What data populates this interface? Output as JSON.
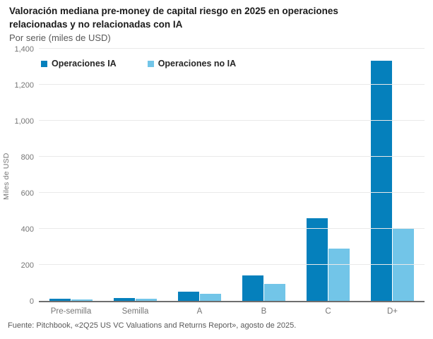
{
  "header": {
    "title": "Valoración mediana pre-money de capital riesgo en 2025 en operaciones relacionadas y no relacionadas con IA",
    "subtitle": "Por serie (miles de USD)"
  },
  "chart_data": {
    "type": "bar",
    "title": "Valoración mediana pre-money de capital riesgo en 2025 en operaciones relacionadas y no relacionadas con IA",
    "subtitle": "Por serie (miles de USD)",
    "categories": [
      "Pre-semilla",
      "Semilla",
      "A",
      "B",
      "C",
      "D+"
    ],
    "series": [
      {
        "name": "Operaciones IA",
        "color": "#0580bc",
        "values": [
          10,
          16,
          52,
          140,
          460,
          1335
        ]
      },
      {
        "name": "Operaciones no IA",
        "color": "#72c5e8",
        "values": [
          8,
          12,
          39,
          95,
          290,
          400
        ]
      }
    ],
    "xlabel": "",
    "ylabel": "Miles de USD",
    "ylim": [
      0,
      1400
    ],
    "ytick_step": 200,
    "ytick_labels": [
      "0",
      "200",
      "400",
      "600",
      "800",
      "1,000",
      "1,200",
      "1,400"
    ],
    "grid": true,
    "legend_position": "top-left",
    "source": "Fuente: Pitchbook, «2Q25 US VC Valuations and Returns Report», agosto de 2025."
  },
  "colors": {
    "series_ia": "#0580bc",
    "series_no_ia": "#72c5e8",
    "axis": "#6e6e6e",
    "gridline": "#e9e9e9",
    "text_primary": "#1a1a1a",
    "text_secondary": "#595959",
    "text_ticks": "#757575"
  }
}
